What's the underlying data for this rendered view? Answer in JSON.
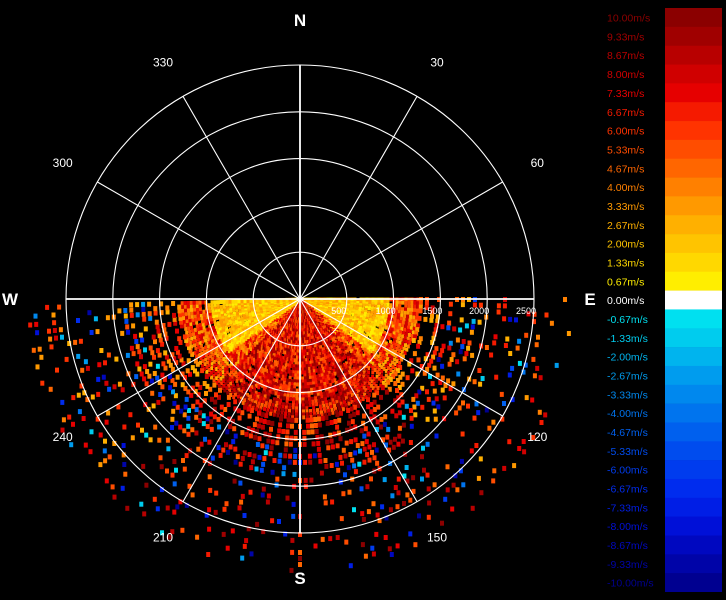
{
  "chart_data": {
    "type": "polar-radar",
    "compass": {
      "north": "N",
      "east": "E",
      "south": "S",
      "west": "W"
    },
    "angle_ticks": [
      "30",
      "60",
      "120",
      "150",
      "210",
      "240",
      "300",
      "330"
    ],
    "range_ticks": [
      "500",
      "1000",
      "1500",
      "2000",
      "2500"
    ],
    "range_max": 2500,
    "range_ring_step": 500,
    "spoke_step_deg": 30,
    "coverage_sector_deg": [
      90,
      270
    ],
    "velocity_unit": "m/s",
    "legend": [
      {
        "label": "10.00m/s",
        "color": "#8b0000"
      },
      {
        "label": "9.33m/s",
        "color": "#a00000"
      },
      {
        "label": "8.67m/s",
        "color": "#b80000"
      },
      {
        "label": "8.00m/s",
        "color": "#d00000"
      },
      {
        "label": "7.33m/s",
        "color": "#e60000"
      },
      {
        "label": "6.67m/s",
        "color": "#f51a00"
      },
      {
        "label": "6.00m/s",
        "color": "#ff3300"
      },
      {
        "label": "5.33m/s",
        "color": "#ff4d00"
      },
      {
        "label": "4.67m/s",
        "color": "#ff6600"
      },
      {
        "label": "4.00m/s",
        "color": "#ff8000"
      },
      {
        "label": "3.33m/s",
        "color": "#ff9900"
      },
      {
        "label": "2.67m/s",
        "color": "#ffb000"
      },
      {
        "label": "2.00m/s",
        "color": "#ffc400"
      },
      {
        "label": "1.33m/s",
        "color": "#ffd800"
      },
      {
        "label": "0.67m/s",
        "color": "#ffee00"
      },
      {
        "label": "0.00m/s",
        "color": "#ffffff"
      },
      {
        "label": "-0.67m/s",
        "color": "#00e0f0"
      },
      {
        "label": "-1.33m/s",
        "color": "#00ccee"
      },
      {
        "label": "-2.00m/s",
        "color": "#00b4ee"
      },
      {
        "label": "-2.67m/s",
        "color": "#009cee"
      },
      {
        "label": "-3.33m/s",
        "color": "#0088ee"
      },
      {
        "label": "-4.00m/s",
        "color": "#0074ee"
      },
      {
        "label": "-4.67m/s",
        "color": "#0060ee"
      },
      {
        "label": "-5.33m/s",
        "color": "#004cee"
      },
      {
        "label": "-6.00m/s",
        "color": "#003cee"
      },
      {
        "label": "-6.67m/s",
        "color": "#002cee"
      },
      {
        "label": "-7.33m/s",
        "color": "#001ee6"
      },
      {
        "label": "-8.00m/s",
        "color": "#0010d8"
      },
      {
        "label": "-8.67m/s",
        "color": "#0008c0"
      },
      {
        "label": "-9.33m/s",
        "color": "#0004a8"
      },
      {
        "label": "-10.00m/s",
        "color": "#000090"
      }
    ]
  }
}
